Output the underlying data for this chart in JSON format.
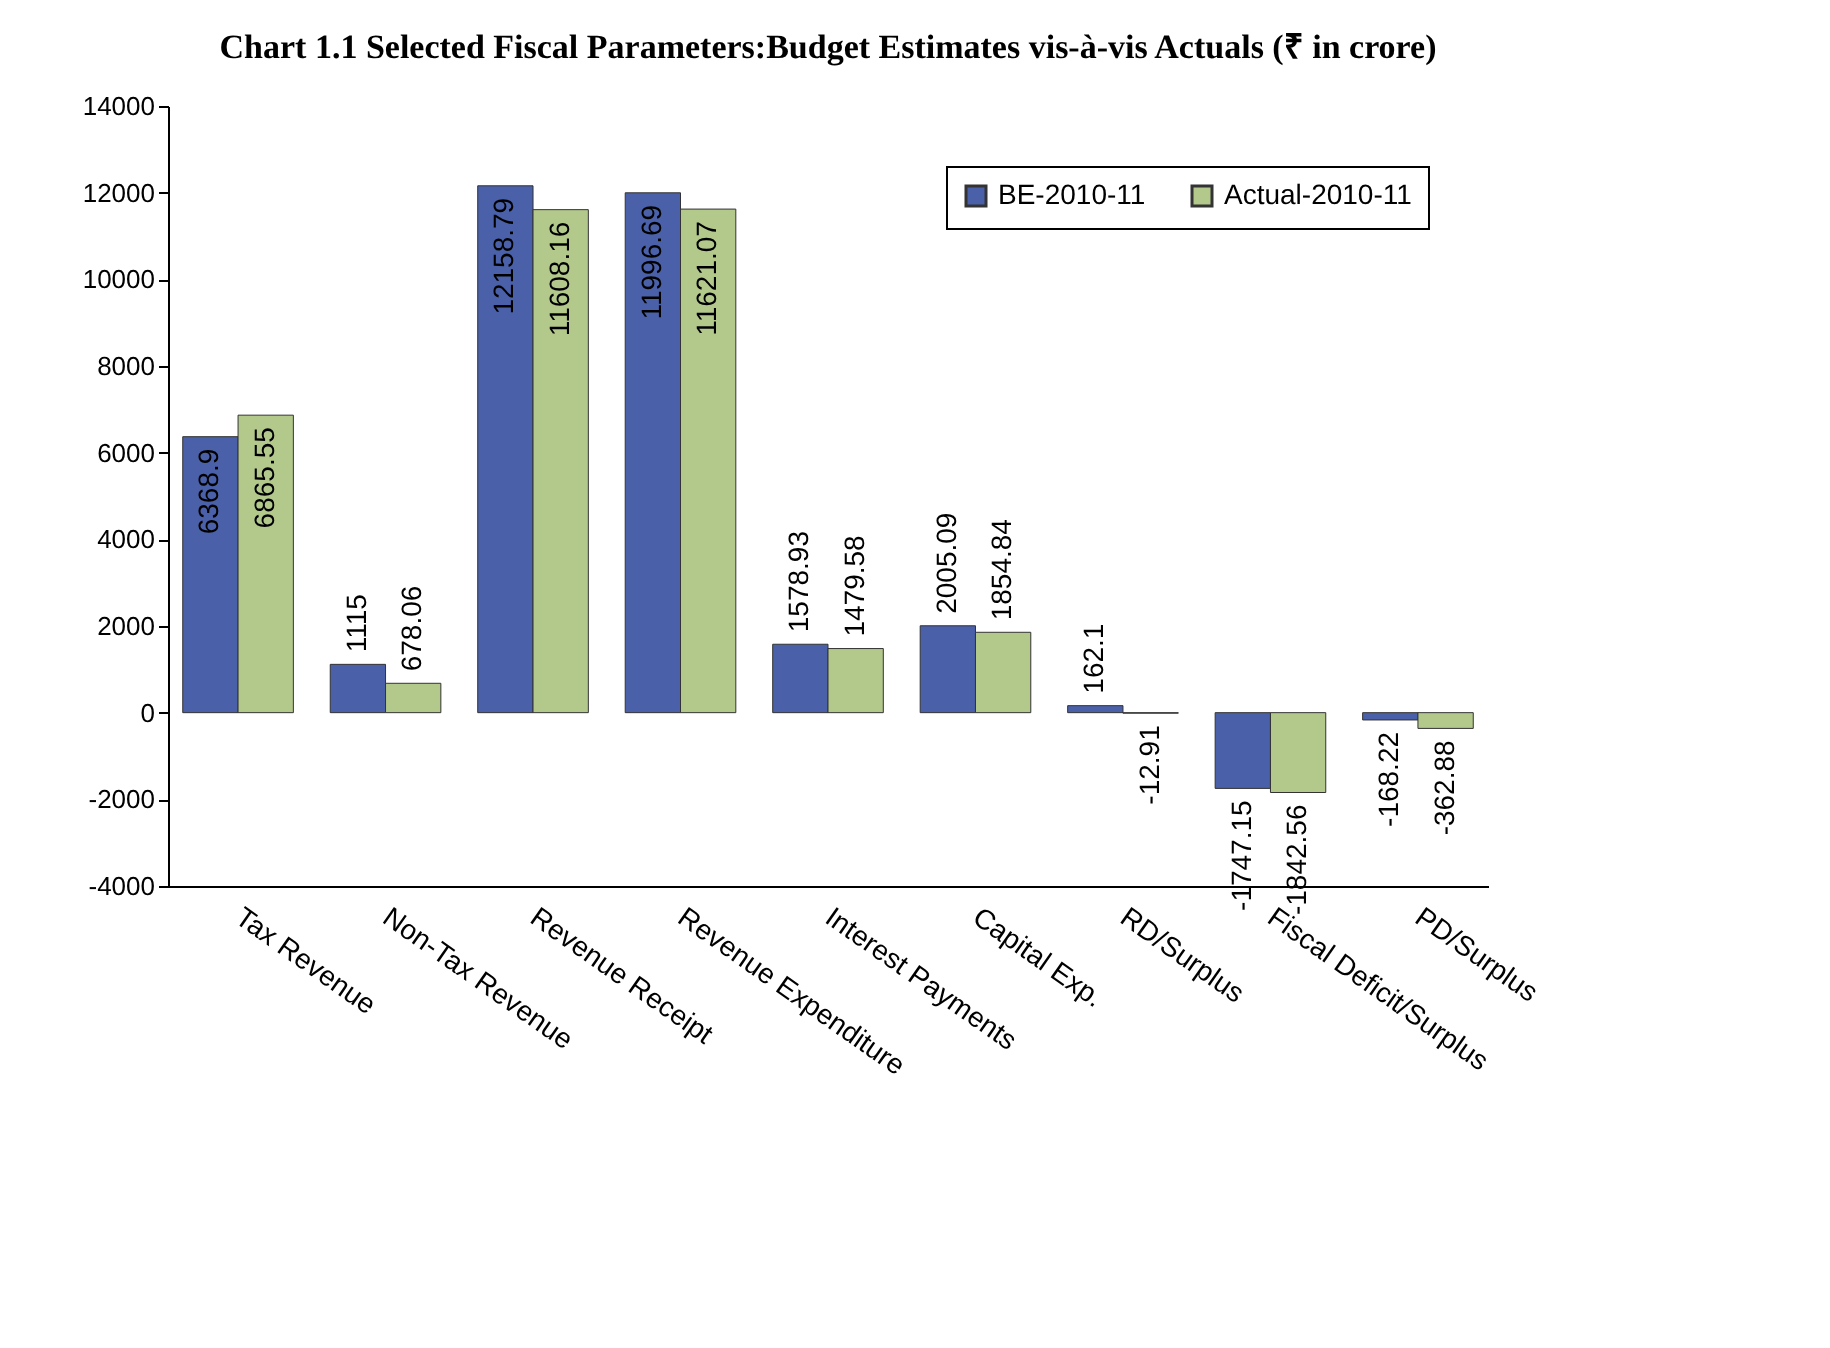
{
  "chart_data": {
    "type": "bar",
    "title": "Chart 1.1 Selected Fiscal Parameters:Budget Estimates vis-à-vis  Actuals (₹ in crore)",
    "categories": [
      "Tax Revenue",
      "Non-Tax Revenue",
      "Revenue Receipt",
      "Revenue Expenditure",
      "Interest Payments",
      "Capital Exp.",
      "RD/Surplus",
      "Fiscal Deficit/Surplus",
      "PD/Surplus"
    ],
    "series": [
      {
        "name": "BE-2010-11",
        "color": "#4a60a8",
        "values": [
          6368.9,
          1115,
          12158.79,
          11996.69,
          1578.93,
          2005.09,
          162.1,
          -1747.15,
          -168.22
        ]
      },
      {
        "name": "Actual-2010-11",
        "color": "#b3c98c",
        "values": [
          6865.55,
          678.06,
          11608.16,
          11621.07,
          1479.58,
          1854.84,
          -12.91,
          -1842.56,
          -362.88
        ]
      }
    ],
    "ylim": [
      -4000,
      14000
    ],
    "yticks": [
      -4000,
      -2000,
      0,
      2000,
      4000,
      6000,
      8000,
      10000,
      12000,
      14000
    ],
    "data_labels": true,
    "grid": false,
    "legend": "top right"
  }
}
